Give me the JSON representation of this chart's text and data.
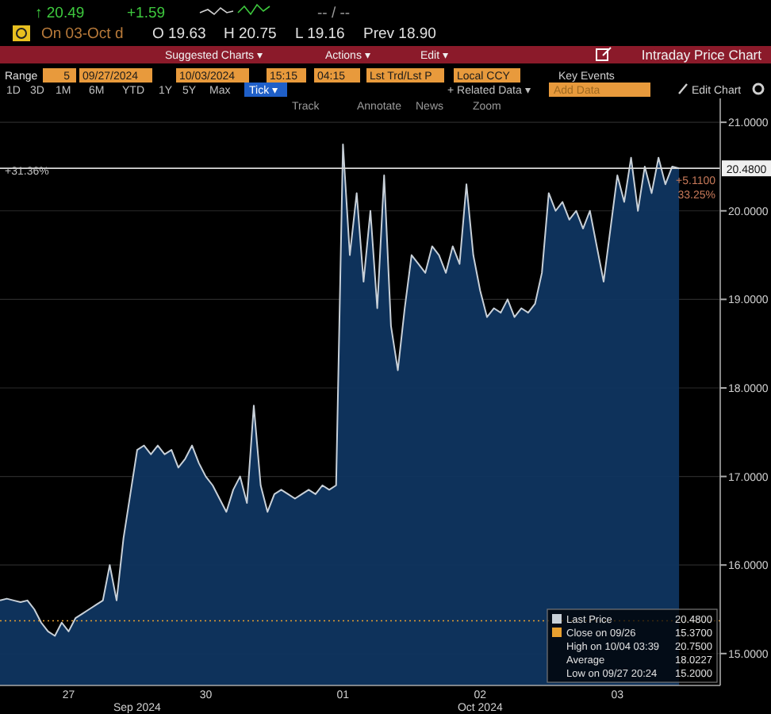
{
  "chart_data": {
    "type": "area",
    "title": "Intraday Price Chart",
    "categories": [
      null,
      null,
      null,
      null,
      null,
      null,
      null,
      null,
      null,
      null,
      "27",
      null,
      null,
      null,
      null,
      null,
      null,
      null,
      null,
      null,
      null,
      null,
      null,
      null,
      null,
      null,
      null,
      null,
      null,
      null,
      "30",
      null,
      null,
      null,
      null,
      null,
      null,
      null,
      null,
      null,
      null,
      null,
      null,
      null,
      null,
      null,
      null,
      null,
      null,
      null,
      "01",
      null,
      null,
      null,
      null,
      null,
      null,
      null,
      null,
      null,
      null,
      null,
      null,
      null,
      null,
      null,
      null,
      null,
      null,
      null,
      "02",
      null,
      null,
      null,
      null,
      null,
      null,
      null,
      null,
      null,
      null,
      null,
      null,
      null,
      null,
      null,
      null,
      null,
      null,
      null,
      "03",
      null,
      null,
      null,
      null,
      null,
      null,
      null,
      null,
      null,
      null,
      null,
      null,
      null,
      null,
      null
    ],
    "series": [
      {
        "name": "Last Price",
        "color": "#c8d0d8",
        "values": [
          15.6,
          15.62,
          15.6,
          15.58,
          15.6,
          15.5,
          15.35,
          15.25,
          15.2,
          15.35,
          15.25,
          15.4,
          15.45,
          15.5,
          15.55,
          15.6,
          16.0,
          15.6,
          16.3,
          16.8,
          17.3,
          17.35,
          17.25,
          17.35,
          17.25,
          17.3,
          17.1,
          17.2,
          17.35,
          17.15,
          17.0,
          16.9,
          16.75,
          16.6,
          16.85,
          17.0,
          16.7,
          17.8,
          16.9,
          16.6,
          16.8,
          16.85,
          16.8,
          16.75,
          16.8,
          16.85,
          16.8,
          16.9,
          16.85,
          16.9,
          20.75,
          19.5,
          20.2,
          19.2,
          20.0,
          18.9,
          20.4,
          18.7,
          18.2,
          18.9,
          19.5,
          19.4,
          19.3,
          19.6,
          19.5,
          19.3,
          19.6,
          19.4,
          20.3,
          19.5,
          19.1,
          18.8,
          18.9,
          18.85,
          19.0,
          18.8,
          18.9,
          18.85,
          18.95,
          19.3,
          20.2,
          20.0,
          20.1,
          19.9,
          20.0,
          19.8,
          20.0,
          19.6,
          19.2,
          19.8,
          20.4,
          20.1,
          20.6,
          20.0,
          20.5,
          20.2,
          20.6,
          20.3,
          20.5,
          20.48,
          null,
          null,
          null,
          null,
          null,
          null
        ]
      }
    ],
    "ylim": [
      14.64,
      21.27
    ],
    "yticks": [
      {
        "value": 15,
        "label": "15.0000"
      },
      {
        "value": 16,
        "label": "16.0000"
      },
      {
        "value": 17,
        "label": "17.0000"
      },
      {
        "value": 18,
        "label": "18.0000"
      },
      {
        "value": 19,
        "label": "19.0000"
      },
      {
        "value": 20,
        "label": "20.0000"
      },
      {
        "value": 21,
        "label": "21.0000"
      }
    ],
    "grid": "y",
    "legend": "bottom right",
    "ref_lines": [
      {
        "axis": "y",
        "value": 20.48,
        "label": "20.4800",
        "color": "#d8d8d8",
        "line_style": "solid"
      },
      {
        "axis": "y",
        "value": 15.37,
        "label": "Close on 09/26",
        "color": "#e8a030",
        "line_style": "dotted"
      }
    ],
    "annotations": [
      "↑ 20.49",
      "+1.59",
      "-- / --",
      "On 03-Oct d",
      "O 19.63",
      "H 20.75",
      "L 19.16",
      "Prev 18.90",
      "Suggested Charts ▾",
      "Actions ▾",
      "Edit ▾",
      "Range",
      "5",
      "09/27/2024",
      "10/03/2024",
      "15:15",
      "04:15",
      "Lst Trd/Lst P",
      "Local CCY",
      "Key Events",
      "1D",
      "3D",
      "1M",
      "6M",
      "YTD",
      "1Y",
      "5Y",
      "Max",
      "Tick ▾",
      "+ Related Data ▾",
      "Add Data",
      "Edit Chart",
      "Track",
      "Annotate",
      "News",
      "Zoom",
      "+31.36%",
      "+5.1100",
      "33.25%",
      "20.4800",
      "15.3700",
      "High on 10/04 03:39",
      "20.7500",
      "Average",
      "18.0227",
      "Low on 09/27 20:24",
      "15.2000",
      "Sep 2024",
      "Oct 2024"
    ]
  }
}
